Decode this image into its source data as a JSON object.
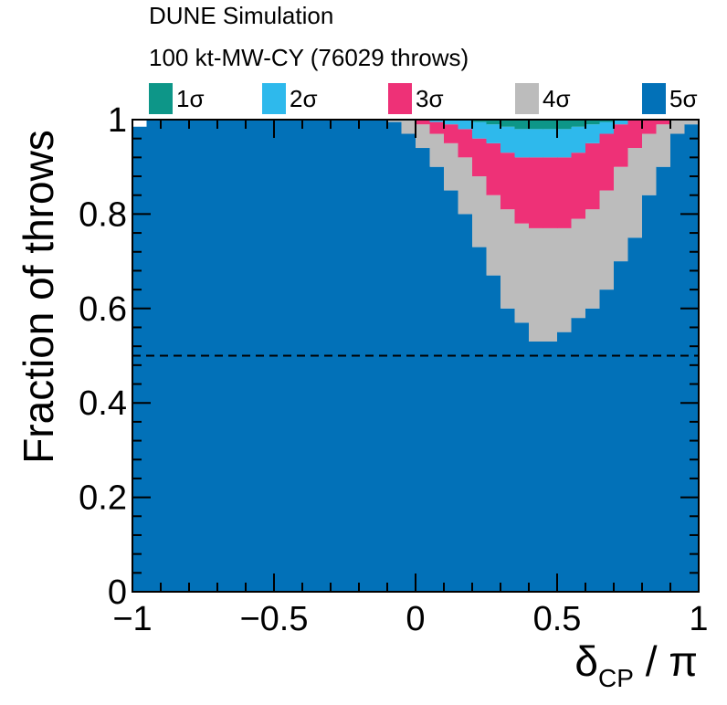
{
  "chart_data": {
    "type": "area",
    "title": "DUNE Simulation",
    "subtitle": "100 kt-MW-CY (76029 throws)",
    "xlabel_main": "δ",
    "xlabel_sub": "CP",
    "xlabel_tail": " / π",
    "ylabel": "Fraction of throws",
    "xlim": [
      -1,
      1
    ],
    "ylim": [
      0,
      1
    ],
    "x_ticks": [
      {
        "value": -1,
        "label": "−1"
      },
      {
        "value": -0.5,
        "label": "−0.5"
      },
      {
        "value": 0,
        "label": "0"
      },
      {
        "value": 0.5,
        "label": "0.5"
      },
      {
        "value": 1,
        "label": "1"
      }
    ],
    "y_ticks": [
      {
        "value": 0,
        "label": "0"
      },
      {
        "value": 0.2,
        "label": "0.2"
      },
      {
        "value": 0.4,
        "label": "0.4"
      },
      {
        "value": 0.6,
        "label": "0.6"
      },
      {
        "value": 0.8,
        "label": "0.8"
      },
      {
        "value": 1,
        "label": "1"
      }
    ],
    "legend_position": "top",
    "series": [
      {
        "name": "1σ",
        "color": "#0d9688"
      },
      {
        "name": "2σ",
        "color": "#2eb9ec"
      },
      {
        "name": "3σ",
        "color": "#ee3177"
      },
      {
        "name": "4σ",
        "color": "#bcbcbc"
      },
      {
        "name": "5σ",
        "color": "#0271b8"
      }
    ],
    "stack_bins": {
      "x_start": [
        -1.0,
        -0.95,
        -0.9,
        -0.85,
        -0.8,
        -0.75,
        -0.7,
        -0.65,
        -0.6,
        -0.55,
        -0.5,
        -0.45,
        -0.4,
        -0.35,
        -0.3,
        -0.25,
        -0.2,
        -0.15,
        -0.1,
        -0.05,
        0.0,
        0.05,
        0.1,
        0.15,
        0.2,
        0.25,
        0.3,
        0.35,
        0.4,
        0.45,
        0.5,
        0.55,
        0.6,
        0.65,
        0.7,
        0.75,
        0.8,
        0.85,
        0.9,
        0.95
      ],
      "bin_width": 0.05,
      "upper_5sigma": [
        0.985,
        1,
        1,
        1,
        1,
        1,
        1,
        1,
        1,
        1,
        1,
        1,
        1,
        1,
        1,
        1,
        1,
        1,
        0.995,
        0.97,
        0.94,
        0.9,
        0.85,
        0.8,
        0.73,
        0.67,
        0.6,
        0.57,
        0.53,
        0.53,
        0.55,
        0.58,
        0.6,
        0.64,
        0.7,
        0.75,
        0.84,
        0.9,
        0.97,
        0.99
      ],
      "upper_4sigma": [
        0.985,
        1,
        1,
        1,
        1,
        1,
        1,
        1,
        1,
        1,
        1,
        1,
        1,
        1,
        1,
        1,
        1,
        1,
        1,
        1,
        0.99,
        0.97,
        0.95,
        0.92,
        0.88,
        0.84,
        0.81,
        0.78,
        0.77,
        0.77,
        0.77,
        0.79,
        0.81,
        0.85,
        0.9,
        0.94,
        0.97,
        0.99,
        1,
        1
      ],
      "upper_3sigma": [
        0.985,
        1,
        1,
        1,
        1,
        1,
        1,
        1,
        1,
        1,
        1,
        1,
        1,
        1,
        1,
        1,
        1,
        1,
        1,
        1,
        1,
        0.995,
        0.99,
        0.98,
        0.96,
        0.95,
        0.93,
        0.92,
        0.92,
        0.92,
        0.92,
        0.93,
        0.95,
        0.97,
        0.99,
        1,
        1,
        1,
        1,
        1
      ],
      "upper_2sigma": [
        0.985,
        1,
        1,
        1,
        1,
        1,
        1,
        1,
        1,
        1,
        1,
        1,
        1,
        1,
        1,
        1,
        1,
        1,
        1,
        1,
        1,
        1,
        1,
        1,
        0.995,
        0.99,
        0.985,
        0.98,
        0.98,
        0.98,
        0.98,
        0.985,
        0.99,
        0.995,
        1,
        1,
        1,
        1,
        1,
        1
      ],
      "upper_1sigma": [
        0.985,
        1,
        1,
        1,
        1,
        1,
        1,
        1,
        1,
        1,
        1,
        1,
        1,
        1,
        1,
        1,
        1,
        1,
        1,
        1,
        1,
        1,
        1,
        1,
        1,
        1,
        1,
        1,
        1,
        1,
        1,
        1,
        1,
        1,
        1,
        1,
        1,
        1,
        1,
        1
      ]
    },
    "reference_line": {
      "y": 0.5,
      "style": "dashed"
    }
  }
}
